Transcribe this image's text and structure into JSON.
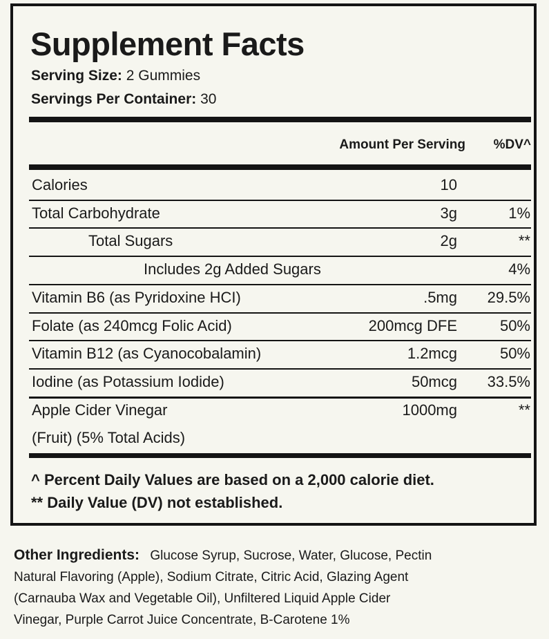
{
  "header": {
    "title": "Supplement Facts",
    "serving_size": {
      "label": "Serving Size:",
      "value": "2 Gummies"
    },
    "servings_per_container": {
      "label": "Servings Per Container:",
      "value": "30"
    }
  },
  "table": {
    "columns": [
      "Amount Per Serving",
      "%DV^"
    ],
    "rows": [
      {
        "name": "Calories",
        "amount": "10"
      },
      {
        "name": "Total Carbohydrate",
        "amount": "3g",
        "dv": "1%"
      },
      {
        "name": "Total Sugars",
        "amount": "2g",
        "dv": "**"
      },
      {
        "name": "Includes 2g Added Sugars",
        "dv": "4%"
      },
      {
        "name": "Vitamin B6 (as Pyridoxine HCI)",
        "amount": ".5mg",
        "dv": "29.5%"
      },
      {
        "name": "Folate (as 240mcg Folic Acid)",
        "amount": "200mcg DFE",
        "dv": "50%"
      },
      {
        "name": "Vitamin B12 (as Cyanocobalamin)",
        "amount": "1.2mcg",
        "dv": "50%"
      },
      {
        "name": "Iodine (as Potassium Iodide)",
        "amount": "50mcg",
        "dv": "33.5%"
      },
      {
        "name": "Apple Cider Vinegar",
        "note": "(Fruit) (5% Total Acids)",
        "amount": "1000mg",
        "dv": "**"
      }
    ]
  },
  "footnotes": [
    "^ Percent Daily Values are based on a 2,000 calorie diet.",
    "** Daily Value (DV) not established."
  ],
  "other_ingredients": {
    "label": "Other Ingredients:",
    "lines": [
      "Glucose Syrup, Sucrose, Water, Glucose, Pectin",
      "Natural Flavoring (Apple), Sodium Citrate, Citric Acid, Glazing Agent",
      "(Carnauba Wax and Vegetable Oil), Unfiltered Liquid Apple Cider",
      "Vinegar, Purple Carrot Juice Concentrate, B-Carotene 1%"
    ]
  }
}
